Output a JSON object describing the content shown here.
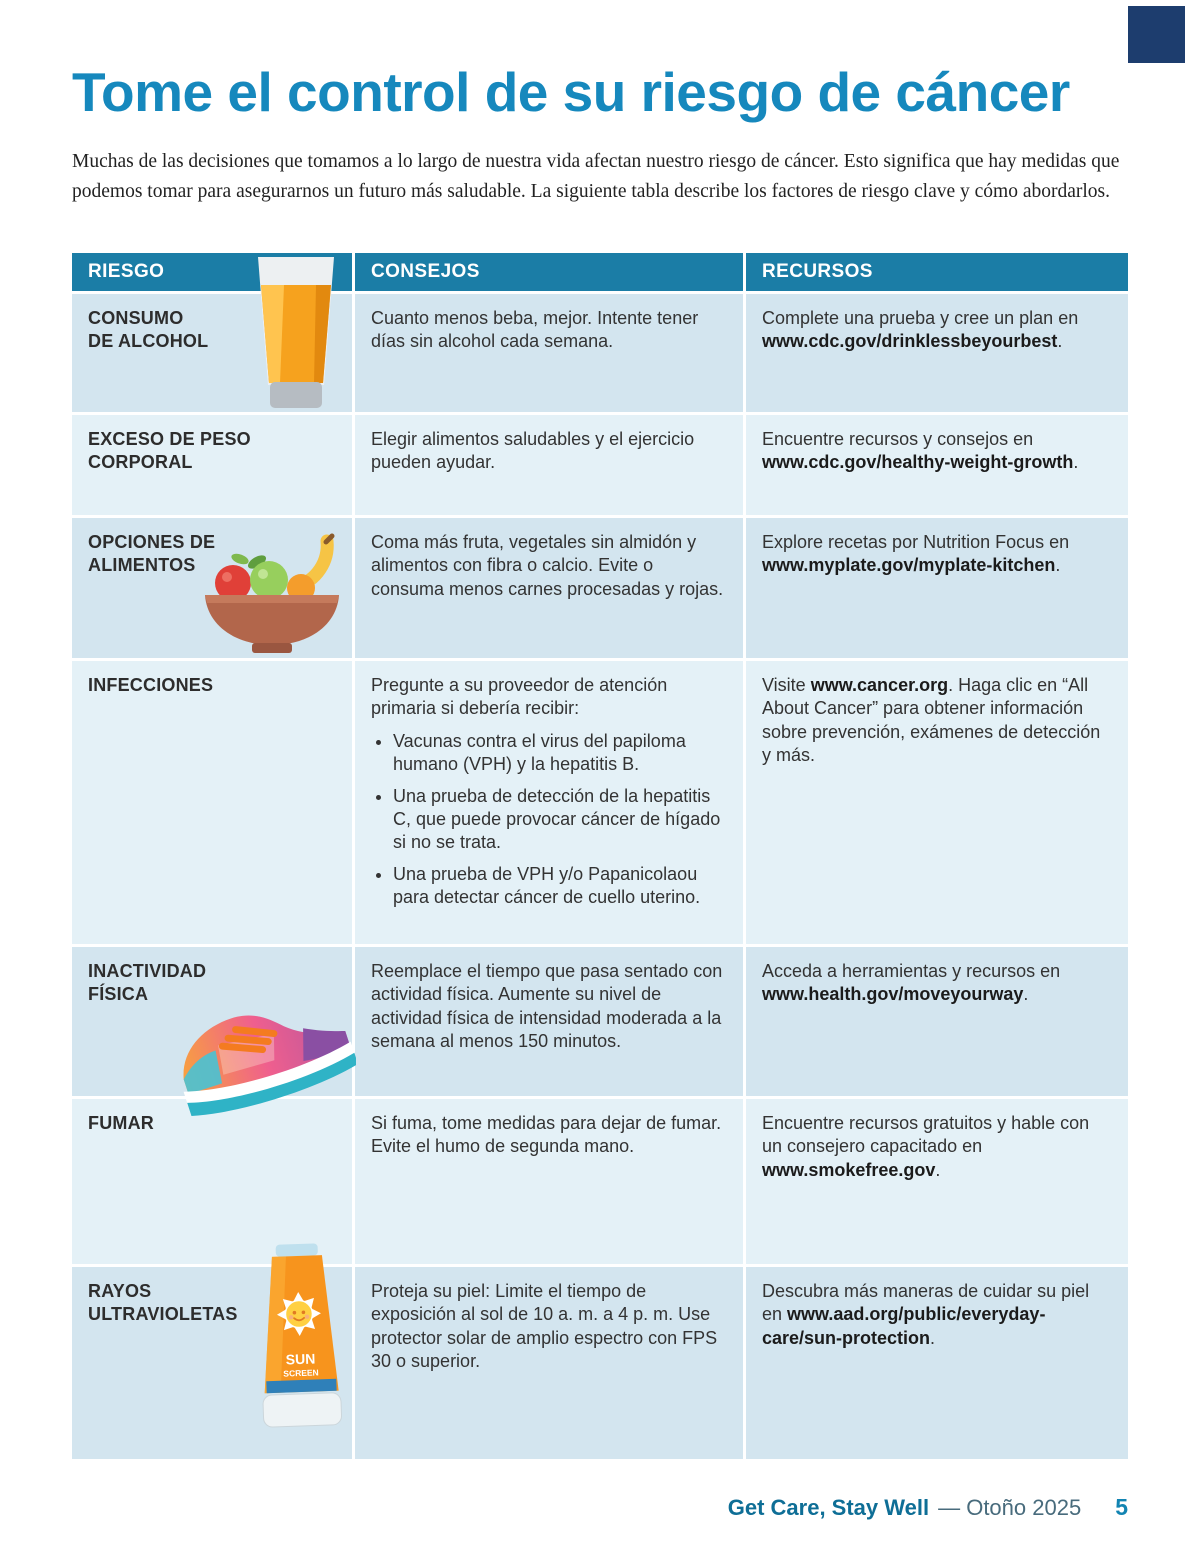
{
  "colors": {
    "title_teal": "#1688bd",
    "table_header_bg": "#1b7da6",
    "row_dark_bg": "#d3e5ef",
    "row_light_bg": "#e4f1f7",
    "logo_navy": "#1d3d6e",
    "footer_teal": "#0e6e96"
  },
  "page": {
    "title": "Tome el control de su riesgo de cáncer",
    "intro": "Muchas de las decisiones que tomamos a lo largo de nuestra vida afectan nuestro riesgo de cáncer. Esto significa que hay medidas que podemos tomar para asegurarnos un futuro más saludable. La siguiente tabla describe los factores de riesgo clave y cómo abordarlos."
  },
  "table": {
    "headers": [
      "RIESGO",
      "CONSEJOS",
      "RECURSOS"
    ],
    "rows": [
      {
        "icon": "beer-glass-icon",
        "risk_lines": [
          "CONSUMO",
          "DE ALCOHOL"
        ],
        "consejos": "Cuanto menos beba, mejor. Intente tener días sin alcohol cada semana.",
        "recursos": [
          {
            "t": "Complete una prueba y cree un plan en ",
            "b": false
          },
          {
            "t": "www.cdc.gov/drinklessbeyourbest",
            "b": true
          },
          {
            "t": ".",
            "b": false
          }
        ]
      },
      {
        "risk_lines": [
          "EXCESO DE PESO",
          "CORPORAL"
        ],
        "consejos": "Elegir alimentos saludables y el ejercicio pueden ayudar.",
        "recursos": [
          {
            "t": "Encuentre recursos y consejos en ",
            "b": false
          },
          {
            "t": "www.cdc.gov/healthy-weight-growth",
            "b": true
          },
          {
            "t": ".",
            "b": false
          }
        ]
      },
      {
        "icon": "fruit-bowl-icon",
        "risk_lines": [
          "OPCIONES DE",
          "ALIMENTOS"
        ],
        "consejos": "Coma más fruta, vegetales sin almidón y alimentos con fibra o calcio. Evite o consuma menos carnes procesadas y rojas.",
        "recursos": [
          {
            "t": "Explore recetas por Nutrition Focus en ",
            "b": false
          },
          {
            "t": "www.myplate.gov/myplate-kitchen",
            "b": true
          },
          {
            "t": ".",
            "b": false
          }
        ]
      },
      {
        "risk_lines": [
          "INFECCIONES"
        ],
        "consejos_intro": "Pregunte a su proveedor de atención primaria si debería recibir:",
        "consejos_bullets": [
          "Vacunas contra el virus del papiloma humano (VPH) y la hepatitis B.",
          "Una prueba de detección de la hepatitis C, que puede provocar cáncer de hígado si no se trata.",
          "Una prueba de VPH y/o Papanicolaou para detectar cáncer de cuello uterino."
        ],
        "recursos": [
          {
            "t": "Visite ",
            "b": false
          },
          {
            "t": "www.cancer.org",
            "b": true
          },
          {
            "t": ". Haga clic en “All About Cancer” para obtener información sobre prevención, exámenes de detección y más.",
            "b": false
          }
        ]
      },
      {
        "icon": "running-shoe-icon",
        "risk_lines": [
          "INACTIVIDAD",
          "FÍSICA"
        ],
        "consejos": "Reemplace el tiempo que pasa sentado con actividad física. Aumente su nivel de actividad física de intensidad moderada a la semana al menos 150 minutos.",
        "recursos": [
          {
            "t": "Acceda a herramientas y recursos en ",
            "b": false
          },
          {
            "t": "www.health.gov/moveyourway",
            "b": true
          },
          {
            "t": ".",
            "b": false
          }
        ]
      },
      {
        "risk_lines": [
          "FUMAR"
        ],
        "consejos": "Si fuma, tome medidas para dejar de fumar. Evite el humo de segunda mano.",
        "recursos": [
          {
            "t": "Encuentre recursos gratuitos y hable con un consejero capacitado en ",
            "b": false
          },
          {
            "t": "www.smokefree.gov",
            "b": true
          },
          {
            "t": ".",
            "b": false
          }
        ]
      },
      {
        "icon": "sunscreen-tube-icon",
        "risk_lines": [
          "RAYOS",
          "ULTRAVIOLETAS"
        ],
        "consejos": "Proteja su piel: Limite el tiempo de exposición al sol de 10 a. m. a 4 p. m. Use protector solar de amplio espectro con FPS 30 o superior.",
        "recursos": [
          {
            "t": "Descubra más maneras de cuidar su piel en ",
            "b": false
          },
          {
            "t": "www.aad.org/public/everyday-care/sun-protection",
            "b": true
          },
          {
            "t": ".",
            "b": false
          }
        ]
      }
    ]
  },
  "icons": {
    "sunscreen_line1": "SUN",
    "sunscreen_line2": "SCREEN"
  },
  "footer": {
    "brand": "Get Care, Stay Well",
    "issue": "— Otoño 2025",
    "page_number": "5"
  }
}
